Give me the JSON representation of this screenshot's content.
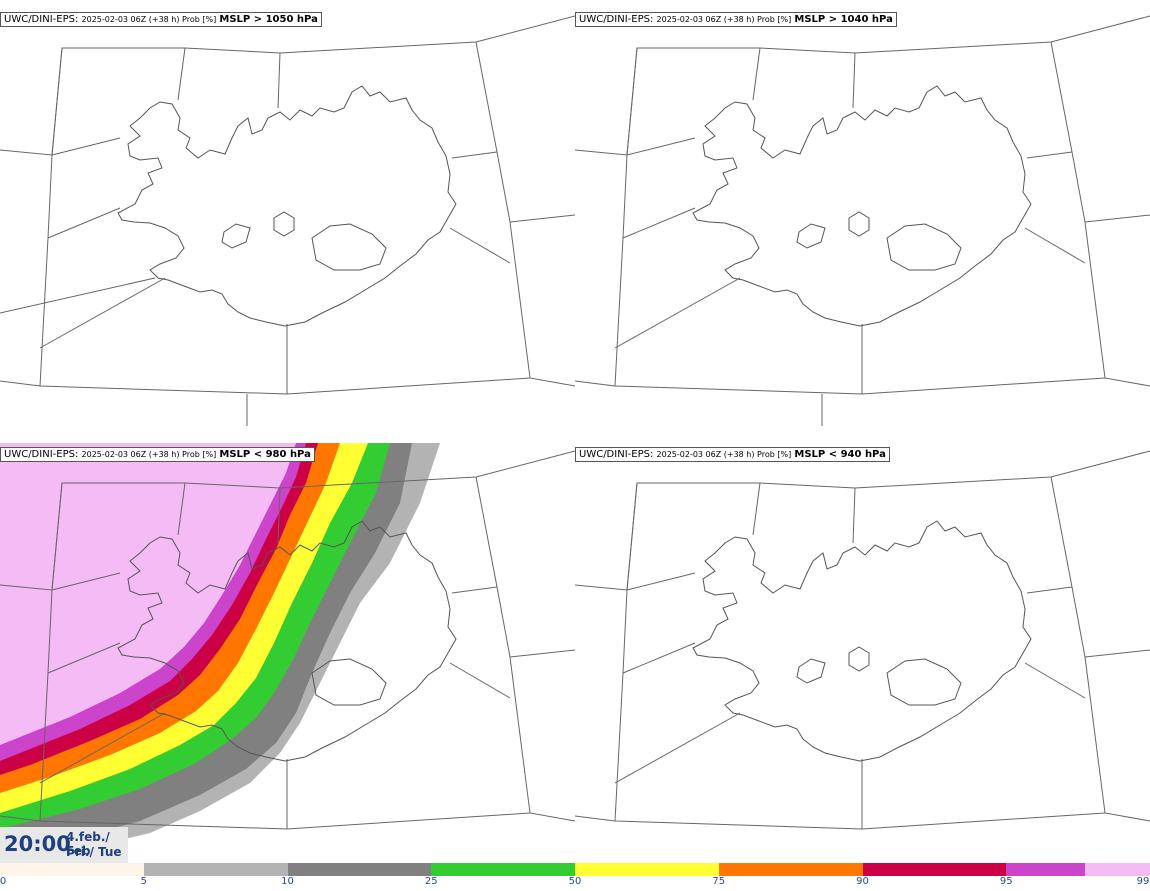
{
  "panels": [
    {
      "model": "UWC/DINI-EPS",
      "run": "2025-02-03 06Z (+38 h) Prob [%]",
      "field": "MSLP > 1050 hPa"
    },
    {
      "model": "UWC/DINI-EPS",
      "run": "2025-02-03 06Z (+38 h) Prob [%]",
      "field": "MSLP > 1040 hPa"
    },
    {
      "model": "UWC/DINI-EPS",
      "run": "2025-02-03 06Z (+38 h) Prob [%]",
      "field": "MSLP < 980 hPa"
    },
    {
      "model": "UWC/DINI-EPS",
      "run": "2025-02-03 06Z (+38 h) Prob [%]",
      "field": "MSLP < 940 hPa"
    }
  ],
  "valid_time": {
    "clock": "20:00",
    "date": "4.feb./ Feb",
    "day": "Þri./ Tue"
  },
  "legend": {
    "ticks": [
      "0",
      "5",
      "10",
      "25",
      "50",
      "75",
      "90",
      "95",
      "99"
    ],
    "colors": [
      "#fff4ea",
      "#b3b3b3",
      "#808080",
      "#33cc33",
      "#ffff33",
      "#ff7700",
      "#cc0044",
      "#cc44cc",
      "#f5bbf5"
    ]
  },
  "map": {
    "coastline_color": "#555555",
    "border_color": "#666666"
  }
}
